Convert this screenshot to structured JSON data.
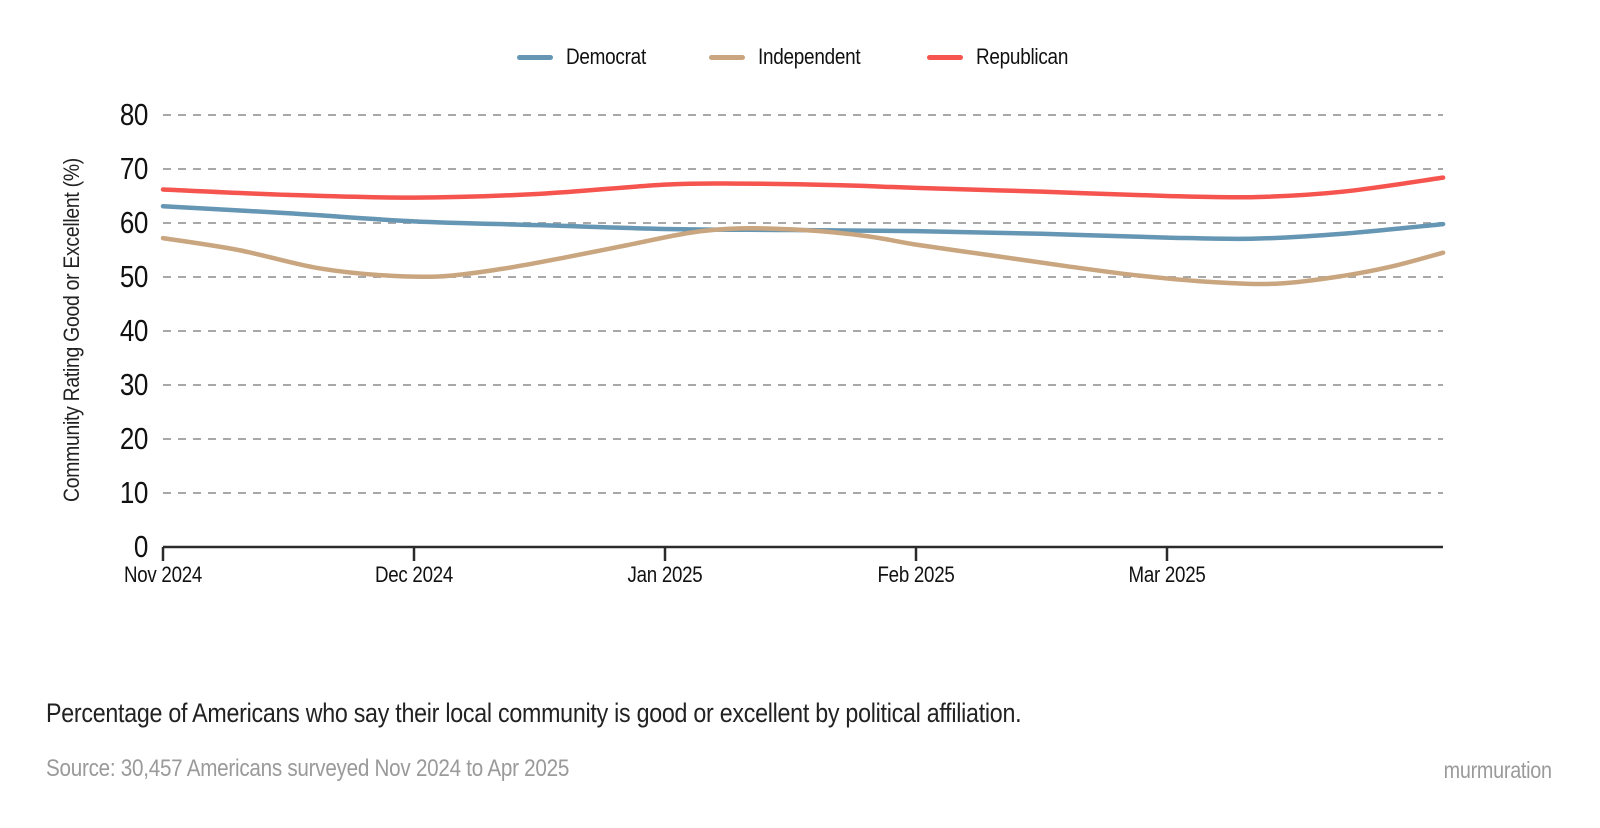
{
  "chart_data": {
    "type": "line",
    "title": "",
    "xlabel": "",
    "ylabel": "Community Rating Good or Excellent (%)",
    "ylim": [
      0,
      80
    ],
    "yticks": [
      0,
      10,
      20,
      30,
      40,
      50,
      60,
      70,
      80
    ],
    "x_unit": "months since Nov 2024",
    "x_range": [
      0,
      5.1
    ],
    "x_tick_positions": [
      0,
      1,
      2,
      3,
      4
    ],
    "x_tick_labels": [
      "Nov 2024",
      "Dec 2024",
      "Jan 2025",
      "Feb 2025",
      "Mar 2025"
    ],
    "grid": "horizontal dashed",
    "legend_position": "top-center",
    "colors": {
      "grid": "#a8a8a8",
      "axis": "#2b2b2b"
    },
    "series": [
      {
        "name": "Democrat",
        "color": "#6596b3",
        "points": [
          [
            0,
            63.1
          ],
          [
            0.5,
            61.8
          ],
          [
            1.0,
            60.3
          ],
          [
            1.5,
            59.6
          ],
          [
            2.0,
            58.9
          ],
          [
            2.5,
            58.7
          ],
          [
            3.0,
            58.5
          ],
          [
            3.5,
            58.0
          ],
          [
            4.0,
            57.3
          ],
          [
            4.35,
            57.1
          ],
          [
            4.7,
            58.0
          ],
          [
            5.1,
            59.8
          ]
        ]
      },
      {
        "name": "Independent",
        "color": "#c9a67f",
        "points": [
          [
            0,
            57.2
          ],
          [
            0.3,
            55.0
          ],
          [
            0.6,
            51.8
          ],
          [
            0.85,
            50.4
          ],
          [
            1.1,
            50.1
          ],
          [
            1.35,
            51.5
          ],
          [
            1.6,
            53.6
          ],
          [
            1.85,
            55.9
          ],
          [
            2.1,
            58.2
          ],
          [
            2.3,
            59.0
          ],
          [
            2.55,
            58.7
          ],
          [
            2.8,
            57.6
          ],
          [
            3.0,
            56.0
          ],
          [
            3.3,
            54.0
          ],
          [
            3.6,
            52.0
          ],
          [
            3.9,
            50.2
          ],
          [
            4.2,
            49.0
          ],
          [
            4.45,
            48.8
          ],
          [
            4.7,
            50.2
          ],
          [
            4.9,
            52.0
          ],
          [
            5.1,
            54.5
          ]
        ]
      },
      {
        "name": "Republican",
        "color": "#f6544e",
        "points": [
          [
            0,
            66.2
          ],
          [
            0.5,
            65.2
          ],
          [
            1.0,
            64.7
          ],
          [
            1.5,
            65.4
          ],
          [
            2.0,
            67.1
          ],
          [
            2.3,
            67.3
          ],
          [
            2.7,
            67.0
          ],
          [
            3.0,
            66.5
          ],
          [
            3.5,
            65.8
          ],
          [
            4.0,
            65.0
          ],
          [
            4.35,
            64.8
          ],
          [
            4.7,
            65.8
          ],
          [
            5.1,
            68.4
          ]
        ]
      }
    ]
  },
  "caption": {
    "text": "Percentage of Americans who say their local community is good or excellent by political affiliation."
  },
  "footer": {
    "source": "Source: 30,457 Americans surveyed Nov 2024 to Apr 2025",
    "brand": "murmuration"
  }
}
